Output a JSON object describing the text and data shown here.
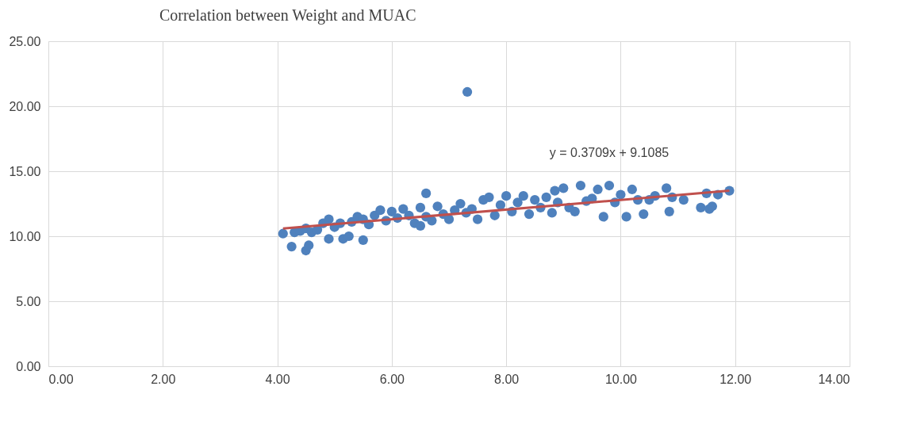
{
  "chart_data": {
    "type": "scatter",
    "title": "Correlation between Weight and MUAC",
    "grid": true,
    "xlim": [
      0,
      14
    ],
    "ylim": [
      0,
      25
    ],
    "xticks": [
      {
        "value": 0,
        "label": "0.00"
      },
      {
        "value": 2,
        "label": "2.00"
      },
      {
        "value": 4,
        "label": "4.00"
      },
      {
        "value": 6,
        "label": "6.00"
      },
      {
        "value": 8,
        "label": "8.00"
      },
      {
        "value": 10,
        "label": "10.00"
      },
      {
        "value": 12,
        "label": "12.00"
      },
      {
        "value": 14,
        "label": "14.00"
      }
    ],
    "yticks": [
      {
        "value": 0,
        "label": "0.00"
      },
      {
        "value": 5,
        "label": "5.00"
      },
      {
        "value": 10,
        "label": "10.00"
      },
      {
        "value": 15,
        "label": "15.00"
      },
      {
        "value": 20,
        "label": "20.00"
      },
      {
        "value": 25,
        "label": "25.00"
      }
    ],
    "series": [
      {
        "type": "scatter",
        "color": "#4f81bd",
        "marker": "circle",
        "x": [
          4.1,
          4.25,
          4.3,
          4.4,
          4.5,
          4.55,
          4.5,
          4.6,
          4.7,
          4.8,
          4.9,
          4.9,
          5.0,
          5.1,
          5.15,
          5.25,
          5.3,
          5.4,
          5.5,
          5.5,
          5.6,
          5.7,
          5.8,
          5.9,
          6.0,
          6.1,
          6.2,
          6.3,
          6.4,
          6.5,
          6.5,
          6.6,
          6.6,
          6.7,
          6.8,
          6.9,
          7.0,
          7.1,
          7.2,
          7.3,
          7.32,
          7.4,
          7.5,
          7.6,
          7.7,
          7.8,
          7.9,
          8.0,
          8.1,
          8.2,
          8.3,
          8.4,
          8.5,
          8.6,
          8.7,
          8.8,
          8.85,
          8.9,
          9.0,
          9.1,
          9.2,
          9.3,
          9.4,
          9.5,
          9.6,
          9.7,
          9.8,
          9.9,
          10.0,
          10.1,
          10.2,
          10.3,
          10.4,
          10.5,
          10.6,
          10.8,
          10.85,
          10.9,
          11.1,
          11.4,
          11.5,
          11.55,
          11.6,
          11.7,
          11.9
        ],
        "values": [
          10.2,
          9.2,
          10.3,
          10.4,
          8.9,
          9.3,
          10.6,
          10.3,
          10.5,
          11.0,
          11.3,
          9.8,
          10.7,
          11.0,
          9.8,
          10.0,
          11.1,
          11.5,
          9.7,
          11.3,
          10.9,
          11.6,
          12.0,
          11.2,
          11.9,
          11.4,
          12.1,
          11.6,
          11.0,
          10.8,
          12.2,
          13.3,
          11.5,
          11.2,
          12.3,
          11.7,
          11.3,
          12.0,
          12.5,
          11.8,
          21.1,
          12.1,
          11.3,
          12.8,
          13.0,
          11.6,
          12.4,
          13.1,
          11.9,
          12.6,
          13.1,
          11.7,
          12.8,
          12.2,
          13.0,
          11.8,
          13.5,
          12.6,
          13.7,
          12.2,
          11.9,
          13.9,
          12.7,
          12.9,
          13.6,
          11.5,
          13.9,
          12.6,
          13.2,
          11.5,
          13.6,
          12.8,
          11.7,
          12.8,
          13.1,
          13.7,
          11.9,
          13.0,
          12.8,
          12.2,
          13.3,
          12.1,
          12.3,
          13.2,
          13.5
        ]
      },
      {
        "type": "line",
        "color": "#c0504d",
        "x": [
          4.1,
          11.9
        ],
        "values": [
          10.6,
          13.5
        ]
      }
    ],
    "annotations": [
      "y = 0.3709x + 9.1085"
    ]
  }
}
